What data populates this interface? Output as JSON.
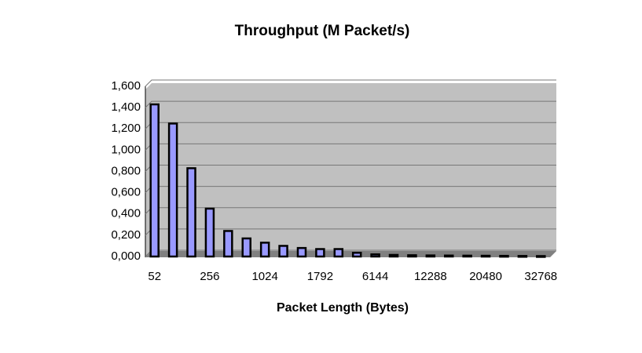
{
  "chart_data": {
    "type": "bar",
    "title": "Throughput (M Packet/s)",
    "x_label": "Packet Length (Bytes)",
    "categories": [
      "52",
      null,
      null,
      "256",
      null,
      null,
      "1024",
      null,
      null,
      "1792",
      null,
      null,
      "6144",
      null,
      null,
      "12288",
      null,
      null,
      "20480",
      null,
      null,
      "32768"
    ],
    "values": [
      1.43,
      1.25,
      0.83,
      0.45,
      0.24,
      0.17,
      0.13,
      0.1,
      0.08,
      0.07,
      0.07,
      0.035,
      0.02,
      0.015,
      0.012,
      0.01,
      0.009,
      0.008,
      0.007,
      0.006,
      0.005,
      0.004
    ],
    "color": "#9999ff",
    "ylim": [
      0,
      1.6
    ],
    "yticks": [
      {
        "value": 0,
        "label": "0,000"
      },
      {
        "value": 0.2,
        "label": "0,200"
      },
      {
        "value": 0.4,
        "label": "0,400"
      },
      {
        "value": 0.6,
        "label": "0,600"
      },
      {
        "value": 0.8,
        "label": "0,800"
      },
      {
        "value": 1.0,
        "label": "1,000"
      },
      {
        "value": 1.2,
        "label": "1,200"
      },
      {
        "value": 1.4,
        "label": "1,400"
      },
      {
        "value": 1.6,
        "label": "1,600"
      }
    ],
    "grid": true
  }
}
